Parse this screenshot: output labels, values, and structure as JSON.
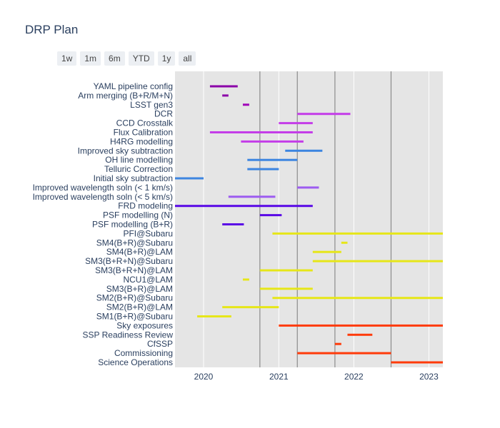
{
  "title": "DRP Plan",
  "range_buttons": [
    "1w",
    "1m",
    "6m",
    "YTD",
    "1y",
    "all"
  ],
  "chart_data": {
    "type": "timeline",
    "title": "DRP Plan",
    "x_type": "date",
    "xlim": [
      "2019-08-15",
      "2023-03-10"
    ],
    "x_ticks": [
      "2020",
      "2021",
      "2022",
      "2023"
    ],
    "grid": true,
    "plot_background": "#e5e5e5",
    "vlines": [
      "2020-10-01",
      "2021-04-01",
      "2021-10-01",
      "2022-07-01"
    ],
    "categories": [
      "YAML pipeline config",
      "Arm merging (B+R/M+N)",
      "LSST gen3",
      "DCR",
      "CCD Crosstalk",
      "Flux Calibration",
      "H4RG modelling",
      "Improved sky subtraction",
      "OH line modelling",
      "Telluric Correction",
      "Initial sky subtraction",
      "Improved wavelength soln (< 1 km/s)",
      "Improved wavelength soln (< 5 km/s)",
      "FRD modeling",
      "PSF modelling (N)",
      "PSF modelling (B+R)",
      "PFI@Subaru",
      "SM4(B+R)@Subaru",
      "SM4(B+R)@LAM",
      "SM3(B+R+N)@Subaru",
      "SM3(B+R+N)@LAM",
      "NCU1@LAM",
      "SM3(B+R)@LAM",
      "SM2(B+R)@Subaru",
      "SM2(B+R)@LAM",
      "SM1(B+R)@Subaru",
      "Sky exposures",
      "SSP Readiness Review",
      "CfSSP",
      "Commissioning",
      "Science Operations"
    ],
    "tasks": [
      {
        "task": "YAML pipeline config",
        "start": "2020-02-01",
        "end": "2020-06-15",
        "color": "#8b00a8"
      },
      {
        "task": "Arm merging (B+R/M+N)",
        "start": "2020-04-01",
        "end": "2020-05-01",
        "color": "#8b00a8"
      },
      {
        "task": "LSST gen3",
        "start": "2020-07-10",
        "end": "2020-08-10",
        "color": "#a000b8"
      },
      {
        "task": "DCR",
        "start": "2021-04-01",
        "end": "2021-12-15",
        "color": "#c43de8"
      },
      {
        "task": "CCD Crosstalk",
        "start": "2021-01-01",
        "end": "2021-06-15",
        "color": "#c43de8"
      },
      {
        "task": "Flux Calibration",
        "start": "2020-02-01",
        "end": "2021-06-15",
        "color": "#c43de8"
      },
      {
        "task": "H4RG modelling",
        "start": "2020-07-01",
        "end": "2021-05-01",
        "color": "#c43de8"
      },
      {
        "task": "Improved sky subtraction",
        "start": "2021-02-01",
        "end": "2021-08-01",
        "color": "#3d85e0"
      },
      {
        "task": "OH line modelling",
        "start": "2020-08-01",
        "end": "2021-04-01",
        "color": "#3d85e0"
      },
      {
        "task": "Telluric Correction",
        "start": "2020-08-01",
        "end": "2021-01-01",
        "color": "#3d85e0"
      },
      {
        "task": "Initial sky subtraction",
        "start": "2019-08-15",
        "end": "2020-01-01",
        "color": "#3d85e0"
      },
      {
        "task": "Improved wavelength soln (< 1 km/s)",
        "start": "2021-04-01",
        "end": "2021-07-15",
        "color": "#9d5cf0"
      },
      {
        "task": "Improved wavelength soln (< 5 km/s)",
        "start": "2020-05-01",
        "end": "2020-12-15",
        "color": "#9d5cf0"
      },
      {
        "task": "FRD modeling",
        "start": "2019-08-15",
        "end": "2021-06-15",
        "color": "#5a0ae6"
      },
      {
        "task": "PSF modelling (N)",
        "start": "2020-10-01",
        "end": "2021-01-15",
        "color": "#5a0ae6"
      },
      {
        "task": "PSF modelling (B+R)",
        "start": "2020-04-01",
        "end": "2020-07-15",
        "color": "#5a0ae6"
      },
      {
        "task": "PFI@Subaru",
        "start": "2020-12-01",
        "end": "2023-03-10",
        "color": "#e6e619"
      },
      {
        "task": "SM4(B+R)@Subaru",
        "start": "2021-11-01",
        "end": "2021-12-01",
        "color": "#e6e619"
      },
      {
        "task": "SM4(B+R)@LAM",
        "start": "2021-06-15",
        "end": "2021-11-01",
        "color": "#e6e619"
      },
      {
        "task": "SM3(B+R+N)@Subaru",
        "start": "2021-06-15",
        "end": "2023-03-10",
        "color": "#e6e619"
      },
      {
        "task": "SM3(B+R+N)@LAM",
        "start": "2020-10-01",
        "end": "2021-06-15",
        "color": "#e6e619"
      },
      {
        "task": "NCU1@LAM",
        "start": "2020-07-10",
        "end": "2020-08-10",
        "color": "#e6e619"
      },
      {
        "task": "SM3(B+R)@LAM",
        "start": "2020-10-01",
        "end": "2021-06-15",
        "color": "#e6e619"
      },
      {
        "task": "SM2(B+R)@Subaru",
        "start": "2020-12-01",
        "end": "2023-03-10",
        "color": "#e6e619"
      },
      {
        "task": "SM2(B+R)@LAM",
        "start": "2020-04-01",
        "end": "2021-01-01",
        "color": "#e6e619"
      },
      {
        "task": "SM1(B+R)@Subaru",
        "start": "2019-12-01",
        "end": "2020-05-15",
        "color": "#e6e619"
      },
      {
        "task": "Sky exposures",
        "start": "2021-01-01",
        "end": "2023-03-10",
        "color": "#ff3b0a"
      },
      {
        "task": "SSP Readiness Review",
        "start": "2021-12-01",
        "end": "2022-04-01",
        "color": "#ff3b0a"
      },
      {
        "task": "CfSSP",
        "start": "2021-10-01",
        "end": "2021-11-01",
        "color": "#ff3b0a"
      },
      {
        "task": "Commissioning",
        "start": "2021-04-01",
        "end": "2022-07-01",
        "color": "#ff3b0a"
      },
      {
        "task": "Science Operations",
        "start": "2022-07-01",
        "end": "2023-03-10",
        "color": "#ff3b0a"
      }
    ]
  }
}
